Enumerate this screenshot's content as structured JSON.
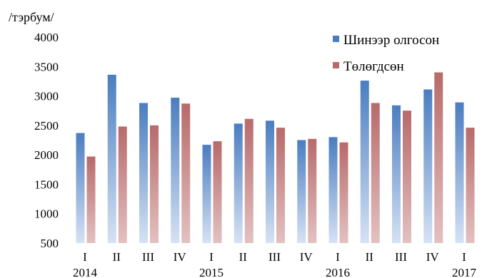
{
  "chart_data": {
    "type": "bar",
    "unit_label": "/тэрбум/",
    "categories": [
      "I",
      "II",
      "III",
      "IV",
      "I",
      "II",
      "III",
      "IV",
      "I",
      "II",
      "III",
      "IV",
      "I"
    ],
    "years": [
      {
        "label": "2014",
        "index": 0
      },
      {
        "label": "2015",
        "index": 4
      },
      {
        "label": "2016",
        "index": 8
      },
      {
        "label": "2017",
        "index": 12
      }
    ],
    "series": [
      {
        "name": "Шинээр олгосон",
        "color": "#4a7dc0",
        "fill_style": "gradient-blue",
        "values": [
          2370,
          3360,
          2880,
          2970,
          2170,
          2530,
          2580,
          2250,
          2300,
          3260,
          2840,
          3110,
          2890
        ]
      },
      {
        "name": "Төлөгдсөн",
        "color": "#b86a6a",
        "fill_style": "gradient-red",
        "values": [
          1970,
          2480,
          2500,
          2870,
          2230,
          2610,
          2460,
          2270,
          2210,
          2880,
          2750,
          3400,
          2460
        ]
      }
    ],
    "y_ticks": [
      "500",
      "1000",
      "1500",
      "2000",
      "2500",
      "3000",
      "3500",
      "4000"
    ],
    "ylim": [
      500,
      4000
    ],
    "grid": false,
    "legend_position": "top-right"
  }
}
